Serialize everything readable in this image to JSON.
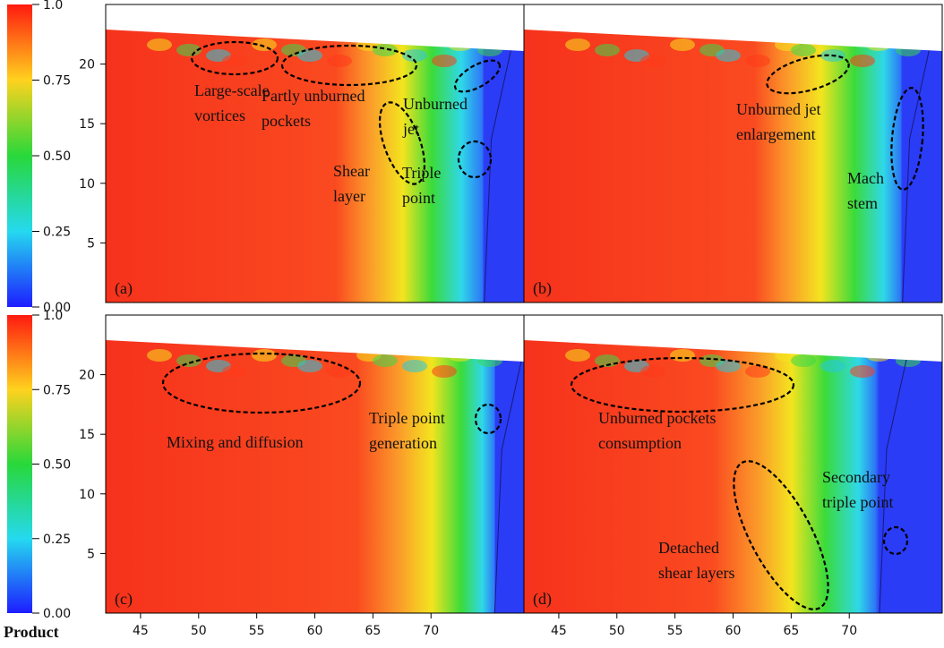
{
  "colorbar": {
    "title": "Product",
    "ticks": [
      {
        "value": 1,
        "label": "1.0"
      },
      0.75,
      {
        "value": 0.5,
        "label": "0.50"
      },
      0.25,
      {
        "value": 0,
        "label": "0.00"
      }
    ],
    "lim": [
      0,
      1
    ]
  },
  "axes": {
    "xlim": [
      42,
      78
    ],
    "xticks": [
      45,
      50,
      55,
      60,
      65,
      70
    ],
    "ylim": [
      0,
      25
    ],
    "yticks": [
      5,
      10,
      15,
      20
    ]
  },
  "panels": [
    {
      "label": "(a)",
      "annotations": [
        [
          "Large-scale",
          "vortices"
        ],
        [
          "Partly unburned",
          "pockets"
        ],
        [
          "Unburned",
          "jet"
        ],
        [
          "Shear",
          "layer"
        ],
        [
          "Triple",
          "point"
        ]
      ]
    },
    {
      "label": "(b)",
      "annotations": [
        [
          "Unburned jet",
          "enlargement"
        ],
        [
          "Mach",
          "stem"
        ]
      ]
    },
    {
      "label": "(c)",
      "annotations": [
        [
          "Mixing and diffusion"
        ],
        [
          "Triple point",
          "generation"
        ]
      ]
    },
    {
      "label": "(d)",
      "annotations": [
        [
          "Unburned pockets",
          "consumption"
        ],
        [
          "Detached",
          "shear layers"
        ],
        [
          "Secondary",
          "triple point"
        ]
      ]
    }
  ]
}
